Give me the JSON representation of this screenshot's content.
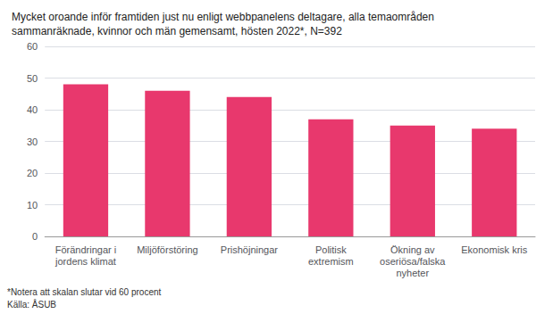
{
  "chart_data": {
    "type": "bar",
    "title": "Mycket oroande inför framtiden just nu enligt webbpanelens deltagare, alla temaområden\nsammanräknade, kvinnor och män gemensamt, hösten 2022*, N=392",
    "annotations": [
      "*Notera att skalan slutar vid 60 procent",
      "Källa: ÅSUB"
    ],
    "categories": [
      "Förändringar i\njordens klimat",
      "Miljöförstöring",
      "Prishöjningar",
      "Politisk\nextremism",
      "Ökning av\noseriösa/falska\nnyheter",
      "Ekonomisk kris"
    ],
    "values": [
      48,
      46,
      44,
      37,
      35,
      34
    ],
    "color": "#E8386D",
    "ylim": [
      0,
      60
    ],
    "yticks": [
      0,
      10,
      20,
      30,
      40,
      50,
      60
    ],
    "grid": true
  }
}
